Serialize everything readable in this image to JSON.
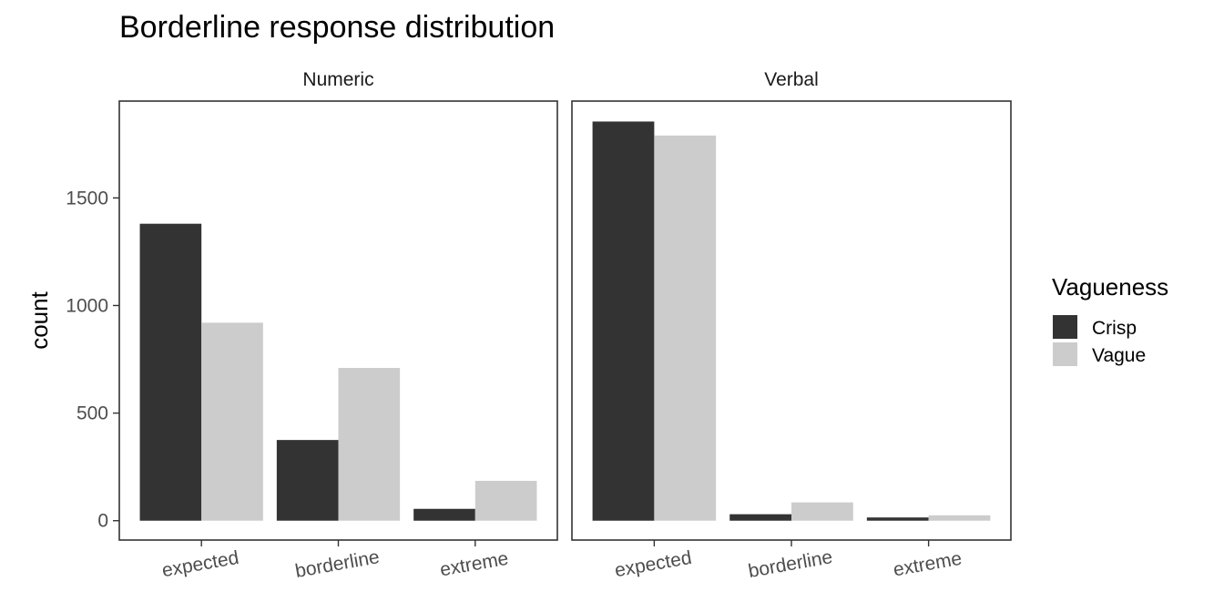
{
  "chart_data": {
    "type": "bar",
    "title": "Borderline response distribution",
    "xlabel": "",
    "ylabel": "count",
    "ylim": [
      -90,
      1950
    ],
    "y_ticks": [
      0,
      500,
      1000,
      1500
    ],
    "y_tick_labels": [
      "0",
      "500",
      "1000",
      "1500"
    ],
    "categories": [
      "expected",
      "borderline",
      "extreme"
    ],
    "grid": false,
    "legend": {
      "title": "Vagueness",
      "position": "right",
      "entries": [
        "Crisp",
        "Vague"
      ]
    },
    "colors": {
      "Crisp": "#333333",
      "Vague": "#cccccc"
    },
    "facets": [
      {
        "label": "Numeric",
        "series": [
          {
            "name": "Crisp",
            "values": [
              1380,
              375,
              55
            ]
          },
          {
            "name": "Vague",
            "values": [
              920,
              710,
              185
            ]
          }
        ]
      },
      {
        "label": "Verbal",
        "series": [
          {
            "name": "Crisp",
            "values": [
              1855,
              30,
              15
            ]
          },
          {
            "name": "Vague",
            "values": [
              1790,
              85,
              25
            ]
          }
        ]
      }
    ]
  }
}
